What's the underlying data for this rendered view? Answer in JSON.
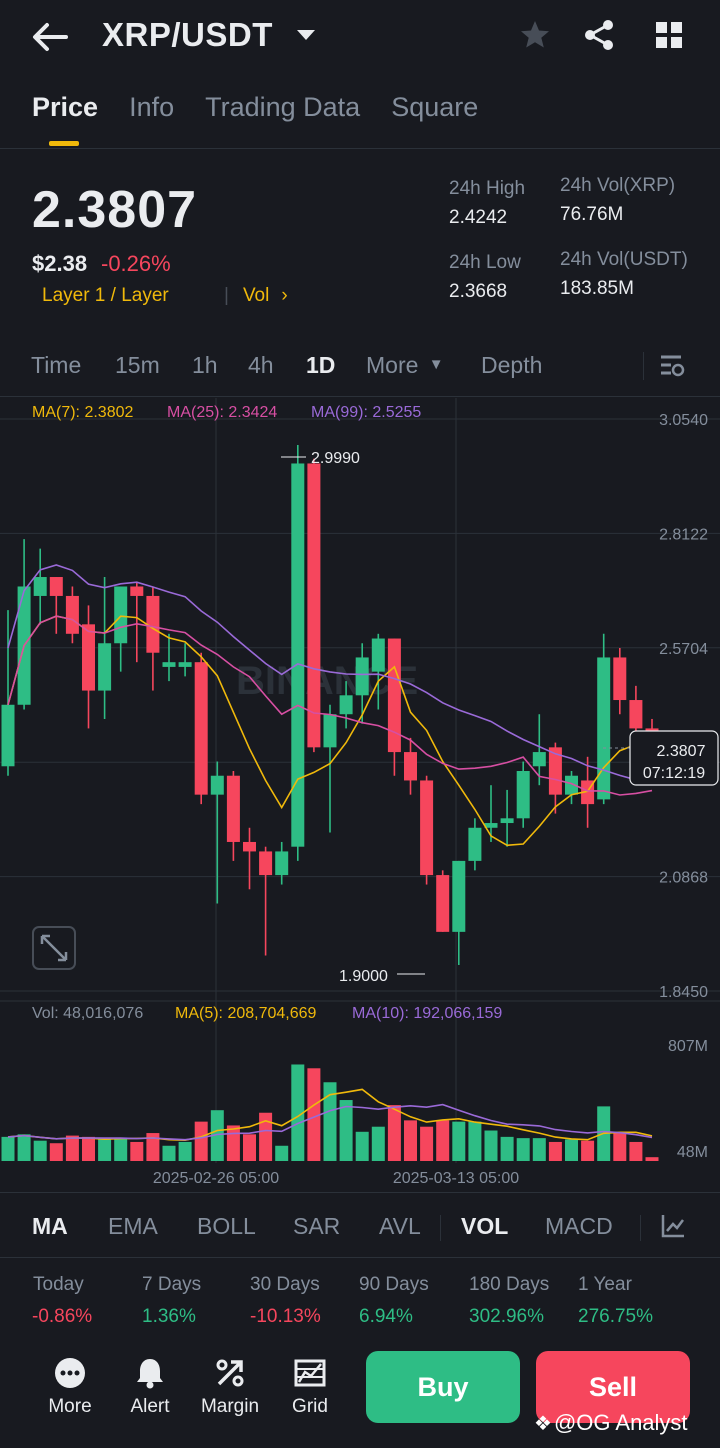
{
  "header": {
    "pair": "XRP/USDT",
    "icons": [
      "back-arrow-icon",
      "chevron-down-icon",
      "star-icon",
      "share-icon",
      "grid-icon"
    ]
  },
  "tabs": [
    {
      "label": "Price",
      "active": true
    },
    {
      "label": "Info",
      "active": false
    },
    {
      "label": "Trading Data",
      "active": false
    },
    {
      "label": "Square",
      "active": false
    }
  ],
  "ticker": {
    "last_price": "2.3807",
    "usd_price": "$2.38",
    "change_pct": "-0.26%",
    "tag": "Layer 1 / Layer",
    "tag2": "Vol",
    "high_label": "24h High",
    "high_value": "2.4242",
    "low_label": "24h Low",
    "low_value": "2.3668",
    "vol_xrp_label": "24h Vol(XRP)",
    "vol_xrp_value": "76.76M",
    "vol_usdt_label": "24h Vol(USDT)",
    "vol_usdt_value": "183.85M"
  },
  "timeframes": {
    "items": [
      "Time",
      "15m",
      "1h",
      "4h",
      "1D"
    ],
    "active": "1D",
    "more": "More",
    "depth": "Depth"
  },
  "chart": {
    "ma_legend": {
      "ma7": "MA(7): 2.3802",
      "ma25": "MA(25): 2.3424",
      "ma99": "MA(99): 2.5255"
    },
    "price_axis": [
      "3.0540",
      "2.8122",
      "2.5704",
      "2.3286",
      "2.0868",
      "1.8450"
    ],
    "price_axis_visible": [
      "3.0540",
      "2.8122",
      "2.5704",
      "2.0868",
      "1.8450"
    ],
    "high_marker": "2.9990",
    "low_marker": "1.9000",
    "current_price": "2.3807",
    "countdown": "07:12:19",
    "watermark": "BINANCE",
    "vol_legend": {
      "vol": "Vol: 48,016,076",
      "ma5": "MA(5): 208,704,669",
      "ma10": "MA(10): 192,066,159"
    },
    "vol_axis": [
      "807M",
      "48M"
    ],
    "dates": [
      "2025-02-26 05:00",
      "2025-03-13 05:00"
    ],
    "colors": {
      "up": "#2ebd85",
      "down": "#f6465d",
      "ma7": "#f0b90b",
      "ma25": "#d74fa3",
      "ma99": "#9a6ad8"
    }
  },
  "chart_data": {
    "type": "candlestick",
    "interval": "1D",
    "ylim": [
      1.845,
      3.054
    ],
    "candles": [
      {
        "o": 2.32,
        "h": 2.65,
        "l": 2.3,
        "c": 2.45
      },
      {
        "o": 2.45,
        "h": 2.8,
        "l": 2.44,
        "c": 2.7
      },
      {
        "o": 2.68,
        "h": 2.78,
        "l": 2.62,
        "c": 2.72
      },
      {
        "o": 2.72,
        "h": 2.72,
        "l": 2.6,
        "c": 2.68
      },
      {
        "o": 2.68,
        "h": 2.7,
        "l": 2.58,
        "c": 2.6
      },
      {
        "o": 2.62,
        "h": 2.66,
        "l": 2.4,
        "c": 2.48
      },
      {
        "o": 2.48,
        "h": 2.72,
        "l": 2.42,
        "c": 2.58
      },
      {
        "o": 2.58,
        "h": 2.7,
        "l": 2.52,
        "c": 2.7
      },
      {
        "o": 2.7,
        "h": 2.71,
        "l": 2.54,
        "c": 2.68
      },
      {
        "o": 2.68,
        "h": 2.7,
        "l": 2.48,
        "c": 2.56
      },
      {
        "o": 2.53,
        "h": 2.6,
        "l": 2.5,
        "c": 2.54
      },
      {
        "o": 2.53,
        "h": 2.58,
        "l": 2.51,
        "c": 2.54
      },
      {
        "o": 2.54,
        "h": 2.56,
        "l": 2.24,
        "c": 2.26
      },
      {
        "o": 2.26,
        "h": 2.33,
        "l": 2.03,
        "c": 2.3
      },
      {
        "o": 2.3,
        "h": 2.31,
        "l": 2.12,
        "c": 2.16
      },
      {
        "o": 2.16,
        "h": 2.19,
        "l": 2.06,
        "c": 2.14
      },
      {
        "o": 2.14,
        "h": 2.15,
        "l": 1.92,
        "c": 2.09
      },
      {
        "o": 2.09,
        "h": 2.16,
        "l": 2.07,
        "c": 2.14
      },
      {
        "o": 2.15,
        "h": 2.999,
        "l": 2.12,
        "c": 2.96
      },
      {
        "o": 2.96,
        "h": 2.97,
        "l": 2.35,
        "c": 2.36
      },
      {
        "o": 2.36,
        "h": 2.45,
        "l": 2.18,
        "c": 2.43
      },
      {
        "o": 2.43,
        "h": 2.5,
        "l": 2.4,
        "c": 2.47
      },
      {
        "o": 2.47,
        "h": 2.58,
        "l": 2.41,
        "c": 2.55
      },
      {
        "o": 2.52,
        "h": 2.6,
        "l": 2.44,
        "c": 2.59
      },
      {
        "o": 2.59,
        "h": 2.59,
        "l": 2.3,
        "c": 2.35
      },
      {
        "o": 2.35,
        "h": 2.38,
        "l": 2.26,
        "c": 2.29
      },
      {
        "o": 2.29,
        "h": 2.3,
        "l": 2.07,
        "c": 2.09
      },
      {
        "o": 2.09,
        "h": 2.1,
        "l": 1.97,
        "c": 1.97
      },
      {
        "o": 1.97,
        "h": 2.12,
        "l": 1.9,
        "c": 2.12
      },
      {
        "o": 2.12,
        "h": 2.21,
        "l": 2.1,
        "c": 2.19
      },
      {
        "o": 2.19,
        "h": 2.28,
        "l": 2.16,
        "c": 2.2
      },
      {
        "o": 2.2,
        "h": 2.27,
        "l": 2.15,
        "c": 2.21
      },
      {
        "o": 2.21,
        "h": 2.33,
        "l": 2.19,
        "c": 2.31
      },
      {
        "o": 2.32,
        "h": 2.43,
        "l": 2.28,
        "c": 2.35
      },
      {
        "o": 2.36,
        "h": 2.37,
        "l": 2.22,
        "c": 2.26
      },
      {
        "o": 2.26,
        "h": 2.31,
        "l": 2.24,
        "c": 2.3
      },
      {
        "o": 2.29,
        "h": 2.34,
        "l": 2.19,
        "c": 2.24
      },
      {
        "o": 2.25,
        "h": 2.6,
        "l": 2.24,
        "c": 2.55
      },
      {
        "o": 2.55,
        "h": 2.57,
        "l": 2.43,
        "c": 2.46
      },
      {
        "o": 2.46,
        "h": 2.49,
        "l": 2.36,
        "c": 2.4
      },
      {
        "o": 2.4,
        "h": 2.42,
        "l": 2.37,
        "c": 2.38
      }
    ],
    "volume": [
      0.19,
      0.21,
      0.16,
      0.14,
      0.2,
      0.19,
      0.17,
      0.18,
      0.15,
      0.22,
      0.12,
      0.15,
      0.31,
      0.4,
      0.28,
      0.21,
      0.38,
      0.12,
      0.76,
      0.73,
      0.62,
      0.48,
      0.23,
      0.27,
      0.44,
      0.32,
      0.27,
      0.32,
      0.31,
      0.31,
      0.24,
      0.19,
      0.18,
      0.18,
      0.15,
      0.17,
      0.16,
      0.43,
      0.22,
      0.15,
      0.03
    ]
  },
  "indicators": {
    "items": [
      "MA",
      "EMA",
      "BOLL",
      "SAR",
      "AVL",
      "VOL",
      "MACD"
    ],
    "active": [
      "MA",
      "VOL"
    ]
  },
  "performance": [
    {
      "label": "Today",
      "value": "-0.86%",
      "sign": "neg"
    },
    {
      "label": "7 Days",
      "value": "1.36%",
      "sign": "pos"
    },
    {
      "label": "30 Days",
      "value": "-10.13%",
      "sign": "neg"
    },
    {
      "label": "90 Days",
      "value": "6.94%",
      "sign": "pos"
    },
    {
      "label": "180 Days",
      "value": "302.96%",
      "sign": "pos"
    },
    {
      "label": "1 Year",
      "value": "276.75%",
      "sign": "pos"
    }
  ],
  "bottom_bar": {
    "more": "More",
    "alert": "Alert",
    "margin": "Margin",
    "grid": "Grid",
    "buy": "Buy",
    "sell": "Sell"
  },
  "watermark_text": "@OG Analyst"
}
